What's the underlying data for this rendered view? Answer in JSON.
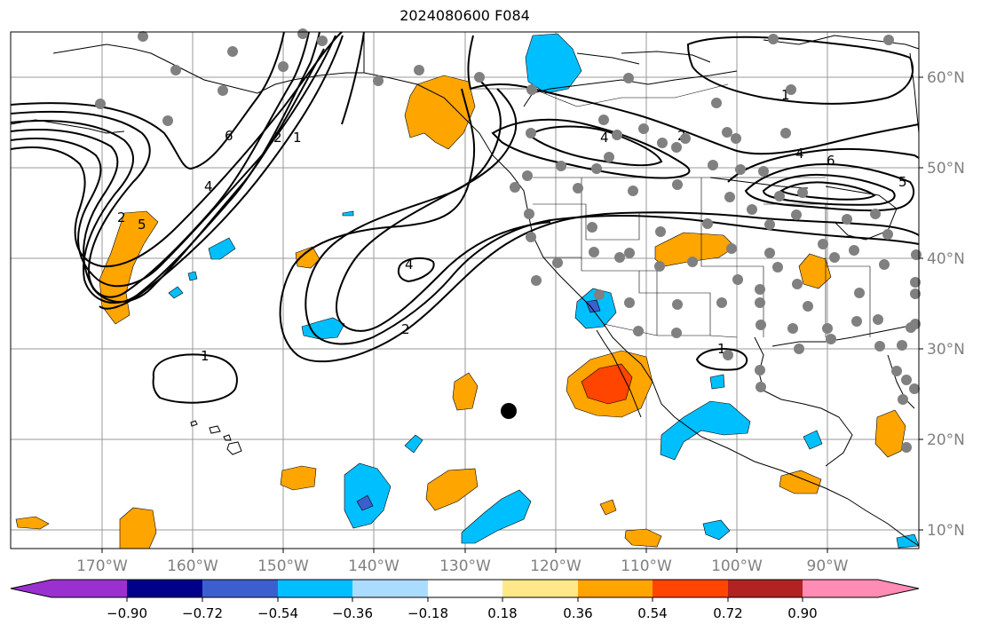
{
  "title": "2024080600 F084",
  "lon_labels": [
    "170°W",
    "160°W",
    "150°W",
    "140°W",
    "130°W",
    "120°W",
    "110°W",
    "100°W",
    "90°W"
  ],
  "lat_labels": [
    "60°N",
    "50°N",
    "40°N",
    "30°N",
    "20°N",
    "10°N"
  ],
  "colorbar": {
    "tick_labels": [
      "−0.90",
      "−0.72",
      "−0.54",
      "−0.36",
      "−0.18",
      "0.18",
      "0.36",
      "0.54",
      "0.72",
      "0.90"
    ],
    "colors": [
      "#9b30d0",
      "#00008b",
      "#3c5fd0",
      "#00bfff",
      "#aadcff",
      "#ffffff",
      "#ffe88a",
      "#ffa500",
      "#ff4500",
      "#b22222",
      "#ff8cb4"
    ]
  },
  "contour_labels": [
    "6",
    "2",
    "1",
    "4",
    "5",
    "4",
    "2",
    "1",
    "4",
    "2",
    "2",
    "1",
    "4",
    "6",
    "5",
    "1",
    "1"
  ],
  "colors": {
    "grid": "#9a9a9a",
    "coast": "#000000",
    "contour": "#000000",
    "station": "#808080",
    "marker": "#000000",
    "orange": "#ffa500",
    "red": "#ff4500",
    "blue": "#00bfff",
    "darkblue": "#3c5fd0"
  }
}
